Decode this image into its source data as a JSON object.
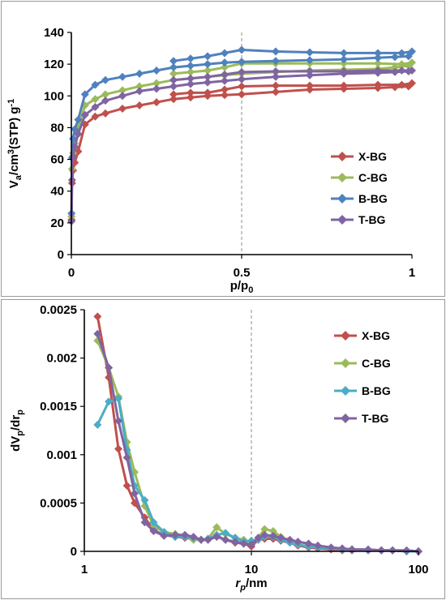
{
  "chart_data": [
    {
      "type": "line",
      "xlabel_main": "p/p",
      "xlabel_sub": "0",
      "ylabel_parts": [
        "V",
        "a",
        "/cm",
        "3",
        "(STP) g",
        "-1"
      ],
      "xlim": [
        0,
        1
      ],
      "ylim": [
        0,
        140
      ],
      "xticks": [
        "0",
        "0.5",
        "1"
      ],
      "xtick_values": [
        0,
        0.5,
        1
      ],
      "yticks": [
        "0",
        "20",
        "40",
        "60",
        "80",
        "100",
        "120",
        "140"
      ],
      "ytick_values": [
        0,
        20,
        40,
        60,
        80,
        100,
        120,
        140
      ],
      "refline_x": 0.5,
      "legend_position": "right",
      "series": [
        {
          "name": "X-BG",
          "color": "#c0504d",
          "x": [
            0.0005,
            0.002,
            0.005,
            0.01,
            0.02,
            0.04,
            0.07,
            0.1,
            0.15,
            0.2,
            0.25,
            0.3,
            0.35,
            0.4,
            0.45,
            0.5,
            0.6,
            0.7,
            0.8,
            0.9,
            0.95,
            0.99,
            1.0,
            0.97,
            0.9,
            0.8,
            0.7,
            0.6,
            0.5,
            0.45,
            0.4,
            0.35,
            0.3
          ],
          "y": [
            22,
            45,
            53,
            58,
            65,
            82,
            87,
            89,
            92,
            94,
            96,
            98,
            99,
            100,
            100.5,
            101,
            102.5,
            104,
            104.5,
            105,
            105.5,
            106,
            108,
            107,
            107,
            106.5,
            106.5,
            106.5,
            106,
            104,
            102,
            102,
            101
          ]
        },
        {
          "name": "C-BG",
          "color": "#9bbb59",
          "x": [
            0.0005,
            0.002,
            0.005,
            0.01,
            0.02,
            0.04,
            0.07,
            0.1,
            0.15,
            0.2,
            0.25,
            0.3,
            0.35,
            0.4,
            0.45,
            0.5,
            0.6,
            0.7,
            0.8,
            0.9,
            0.95,
            0.99,
            1.0,
            0.97,
            0.9,
            0.8,
            0.7,
            0.6,
            0.5,
            0.45,
            0.4,
            0.35,
            0.3
          ],
          "y": [
            24,
            54,
            64,
            70,
            80,
            94,
            98,
            101,
            103.5,
            106,
            108,
            110,
            111,
            112,
            113,
            114,
            115,
            116,
            116.5,
            117,
            118,
            119,
            121,
            120,
            120.5,
            120.5,
            120.5,
            120.5,
            120.5,
            118,
            116,
            115,
            114
          ]
        },
        {
          "name": "B-BG",
          "color": "#4f81bd",
          "x": [
            0.0005,
            0.002,
            0.005,
            0.01,
            0.02,
            0.04,
            0.07,
            0.1,
            0.15,
            0.2,
            0.25,
            0.3,
            0.35,
            0.4,
            0.45,
            0.5,
            0.6,
            0.7,
            0.8,
            0.9,
            0.95,
            0.99,
            1.0,
            0.97,
            0.9,
            0.8,
            0.7,
            0.6,
            0.5,
            0.45,
            0.4,
            0.35,
            0.3
          ],
          "y": [
            26,
            61,
            73,
            79,
            85,
            101,
            107,
            110,
            112,
            114,
            116,
            118,
            119,
            120,
            121,
            121.5,
            122,
            122.5,
            123,
            124,
            124.5,
            125,
            128,
            127,
            127,
            127,
            127.5,
            128,
            129,
            127,
            125,
            123.5,
            122
          ]
        },
        {
          "name": "T-BG",
          "color": "#8064a2",
          "x": [
            0.0005,
            0.002,
            0.005,
            0.01,
            0.02,
            0.04,
            0.07,
            0.1,
            0.15,
            0.2,
            0.25,
            0.3,
            0.35,
            0.4,
            0.45,
            0.5,
            0.6,
            0.7,
            0.8,
            0.9,
            0.95,
            0.99,
            1.0,
            0.97,
            0.9,
            0.8,
            0.7,
            0.6,
            0.5,
            0.45,
            0.4,
            0.35,
            0.3
          ],
          "y": [
            21,
            47,
            62,
            68,
            76,
            88,
            93,
            97,
            100,
            103,
            104.5,
            106,
            107.5,
            108.5,
            109.5,
            110.5,
            112,
            113,
            114,
            114.5,
            115,
            115.5,
            116,
            116,
            116,
            115.5,
            115.5,
            115.5,
            115,
            113.5,
            112,
            111,
            110
          ]
        }
      ]
    },
    {
      "type": "line",
      "xlabel_main": "r",
      "xlabel_sub": "p",
      "xlabel_tail": "/nm",
      "ylabel_parts": [
        "dV",
        "p",
        "/dr",
        "p"
      ],
      "xscale": "log",
      "xlim": [
        1,
        100
      ],
      "ylim": [
        0,
        0.0025
      ],
      "xticks": [
        "1",
        "10",
        "100"
      ],
      "xtick_values": [
        1,
        10,
        100
      ],
      "yticks": [
        "0",
        "0.0005",
        "0.001",
        "0.0015",
        "0.002",
        "0.0025"
      ],
      "ytick_values": [
        0,
        0.0005,
        0.001,
        0.0015,
        0.002,
        0.0025
      ],
      "refline_x": 10,
      "legend_position": "top-right",
      "series": [
        {
          "name": "X-BG",
          "color": "#c0504d",
          "x": [
            1.2,
            1.4,
            1.6,
            1.8,
            2.0,
            2.3,
            2.6,
            3.0,
            3.5,
            4.0,
            4.5,
            5.0,
            5.5,
            6.2,
            7.0,
            8.0,
            9.0,
            10.0,
            11.0,
            12.0,
            13.5,
            15.0,
            17.0,
            19.0,
            22.0,
            25.0,
            30.0,
            35.0,
            40.0,
            50.0,
            60.0,
            70.0,
            85.0,
            100.0
          ],
          "y": [
            0.00243,
            0.0018,
            0.00106,
            0.00068,
            0.0005,
            0.00035,
            0.00022,
            0.00017,
            0.00015,
            0.00014,
            0.00013,
            0.00012,
            0.00012,
            0.00016,
            0.00012,
            9e-05,
            8e-05,
            5e-05,
            0.00012,
            0.00013,
            0.00013,
            0.00011,
            9e-05,
            6e-05,
            4e-05,
            3e-05,
            2e-05,
            1e-05,
            1e-05,
            1e-05,
            1e-05,
            1e-05,
            0.0,
            0.0
          ]
        },
        {
          "name": "C-BG",
          "color": "#9bbb59",
          "x": [
            1.2,
            1.4,
            1.6,
            1.8,
            2.0,
            2.3,
            2.6,
            3.0,
            3.5,
            4.0,
            4.5,
            5.0,
            5.5,
            6.2,
            7.0,
            8.0,
            9.0,
            10.0,
            11.0,
            12.0,
            13.5,
            15.0,
            17.0,
            19.0,
            22.0,
            25.0,
            30.0,
            35.0,
            40.0,
            50.0,
            60.0,
            70.0,
            85.0,
            100.0
          ],
          "y": [
            0.00218,
            0.0019,
            0.0016,
            0.00113,
            0.00082,
            0.00047,
            0.00026,
            0.0002,
            0.00018,
            0.00016,
            0.00012,
            0.00012,
            0.00013,
            0.00025,
            0.00018,
            0.00014,
            0.00012,
            8e-05,
            0.00014,
            0.00023,
            0.00021,
            0.00015,
            0.0001,
            7e-05,
            5e-05,
            4e-05,
            3e-05,
            2e-05,
            2e-05,
            1e-05,
            1e-05,
            1e-05,
            0.0,
            0.0
          ]
        },
        {
          "name": "B-BG",
          "color": "#4bacc6",
          "x": [
            1.2,
            1.4,
            1.6,
            1.8,
            2.0,
            2.3,
            2.6,
            3.0,
            3.5,
            4.0,
            4.5,
            5.0,
            5.5,
            6.2,
            7.0,
            8.0,
            9.0,
            10.0,
            11.0,
            12.0,
            13.5,
            15.0,
            17.0,
            19.0,
            22.0,
            25.0,
            30.0,
            35.0,
            40.0,
            50.0,
            60.0,
            70.0,
            85.0,
            100.0
          ],
          "y": [
            0.00131,
            0.00155,
            0.00158,
            0.00105,
            0.00068,
            0.00053,
            0.0003,
            0.0002,
            0.00015,
            0.00015,
            0.00014,
            0.00012,
            0.00013,
            0.00017,
            0.00019,
            0.00014,
            0.0001,
            0.00011,
            0.00012,
            0.00015,
            0.00015,
            0.00012,
            9e-05,
            7e-05,
            5e-05,
            4e-05,
            3e-05,
            2e-05,
            2e-05,
            1e-05,
            1e-05,
            1e-05,
            0.0,
            0.0
          ]
        },
        {
          "name": "T-BG",
          "color": "#8064a2",
          "x": [
            1.2,
            1.4,
            1.6,
            1.8,
            2.0,
            2.3,
            2.6,
            3.0,
            3.5,
            4.0,
            4.5,
            5.0,
            5.5,
            6.2,
            7.0,
            8.0,
            9.0,
            10.0,
            11.0,
            12.0,
            13.5,
            15.0,
            17.0,
            19.0,
            22.0,
            25.0,
            30.0,
            35.0,
            40.0,
            50.0,
            60.0,
            70.0,
            85.0,
            100.0
          ],
          "y": [
            0.00225,
            0.0019,
            0.00135,
            0.00097,
            0.0006,
            0.0003,
            0.00021,
            0.00016,
            0.00017,
            0.00017,
            0.00015,
            0.00012,
            0.00012,
            0.00015,
            0.00012,
            0.0001,
            8e-05,
            7e-05,
            0.00014,
            0.00017,
            0.00016,
            0.00014,
            0.00012,
            0.0001,
            8e-05,
            6e-05,
            4e-05,
            3e-05,
            2e-05,
            2e-05,
            1e-05,
            1e-05,
            1e-05,
            0.0
          ]
        }
      ]
    }
  ]
}
